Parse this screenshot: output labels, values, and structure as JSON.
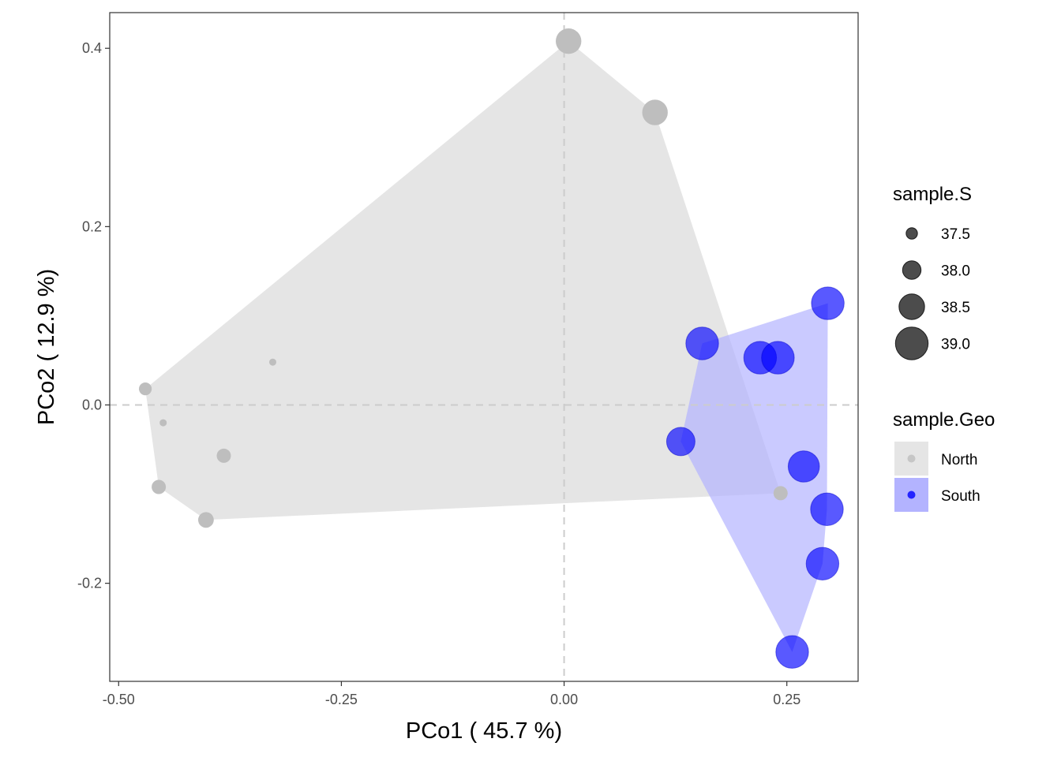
{
  "chart_data": {
    "type": "scatter",
    "xlabel": "PCo1 ( 45.7 %)",
    "ylabel": "PCo2 ( 12.9 %)",
    "xlim": [
      -0.51,
      0.33
    ],
    "ylim": [
      -0.31,
      0.44
    ],
    "x_ticks": [
      -0.5,
      -0.25,
      0.0,
      0.25
    ],
    "x_tick_labels": [
      "-0.50",
      "-0.25",
      "0.00",
      "0.25"
    ],
    "y_ticks": [
      0.4,
      0.2,
      0.0,
      -0.2
    ],
    "y_tick_labels": [
      "0.4",
      "0.2",
      "0.0",
      "-0.2"
    ],
    "grid": false,
    "reference_lines": {
      "x": 0.0,
      "y": 0.0,
      "style": "dashed"
    },
    "legend_placement": "right",
    "size_legend": {
      "title": "sample.S",
      "entries": [
        {
          "label": "37.5",
          "value": 37.5
        },
        {
          "label": "38.0",
          "value": 38.0
        },
        {
          "label": "38.5",
          "value": 38.5
        },
        {
          "label": "39.0",
          "value": 39.0
        }
      ]
    },
    "color_legend": {
      "title": "sample.Geo",
      "entries": [
        {
          "label": "North",
          "color": "#bebebe",
          "fill": "#e5e5e5"
        },
        {
          "label": "South",
          "color": "#0000ff",
          "fill": "#b3b3ff"
        }
      ]
    },
    "series": [
      {
        "name": "North",
        "color": "#bebebe",
        "hull_color": "#e5e5e5",
        "points": [
          {
            "x": 0.005,
            "y": 0.408,
            "size": 38.5
          },
          {
            "x": 0.102,
            "y": 0.328,
            "size": 38.5
          },
          {
            "x": -0.47,
            "y": 0.018,
            "size": 37.6
          },
          {
            "x": -0.327,
            "y": 0.048,
            "size": 37.2
          },
          {
            "x": -0.45,
            "y": -0.02,
            "size": 37.2
          },
          {
            "x": -0.382,
            "y": -0.057,
            "size": 37.7
          },
          {
            "x": -0.455,
            "y": -0.092,
            "size": 37.7
          },
          {
            "x": -0.402,
            "y": -0.129,
            "size": 37.8
          },
          {
            "x": 0.243,
            "y": -0.099,
            "size": 37.7
          }
        ]
      },
      {
        "name": "South",
        "color": "#0000ff",
        "hull_color": "#b3b3ff",
        "points": [
          {
            "x": 0.296,
            "y": 0.114,
            "size": 39.0
          },
          {
            "x": 0.155,
            "y": 0.069,
            "size": 39.0
          },
          {
            "x": 0.22,
            "y": 0.053,
            "size": 39.0
          },
          {
            "x": 0.24,
            "y": 0.053,
            "size": 39.0
          },
          {
            "x": 0.131,
            "y": -0.041,
            "size": 38.7
          },
          {
            "x": 0.269,
            "y": -0.069,
            "size": 38.9
          },
          {
            "x": 0.295,
            "y": -0.117,
            "size": 39.0
          },
          {
            "x": 0.29,
            "y": -0.178,
            "size": 39.0
          },
          {
            "x": 0.256,
            "y": -0.277,
            "size": 39.0
          }
        ]
      }
    ]
  }
}
